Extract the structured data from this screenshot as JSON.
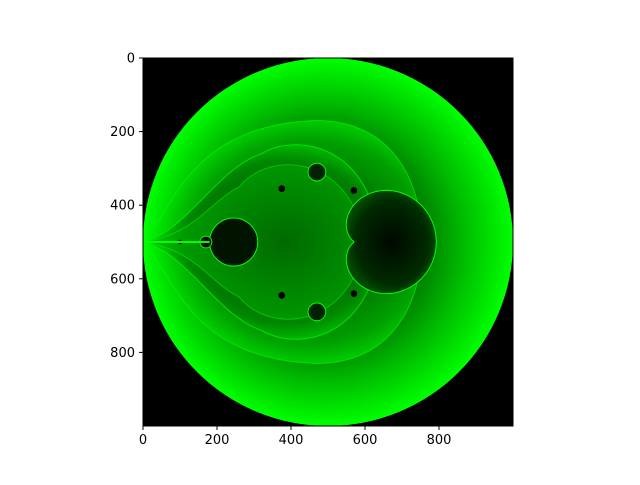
{
  "colors": {
    "background": "#000000",
    "glow_outer": "#00ff00",
    "glow_inner": "#001a00",
    "set_interior": "#002200",
    "figure": "#ffffff"
  },
  "chart_data": {
    "type": "heatmap",
    "title": "",
    "xlabel": "",
    "ylabel": "",
    "xlim": [
      0,
      1000
    ],
    "ylim": [
      1000,
      0
    ],
    "x_ticks": [
      0,
      200,
      400,
      600,
      800
    ],
    "y_ticks": [
      0,
      200,
      400,
      600,
      800
    ],
    "x_tick_labels": [
      "0",
      "200",
      "400",
      "600",
      "800"
    ],
    "y_tick_labels": [
      "0",
      "200",
      "400",
      "600",
      "800"
    ],
    "image_description_colormap": "green escape-time intensity on black",
    "grid": false,
    "legend": "none"
  }
}
